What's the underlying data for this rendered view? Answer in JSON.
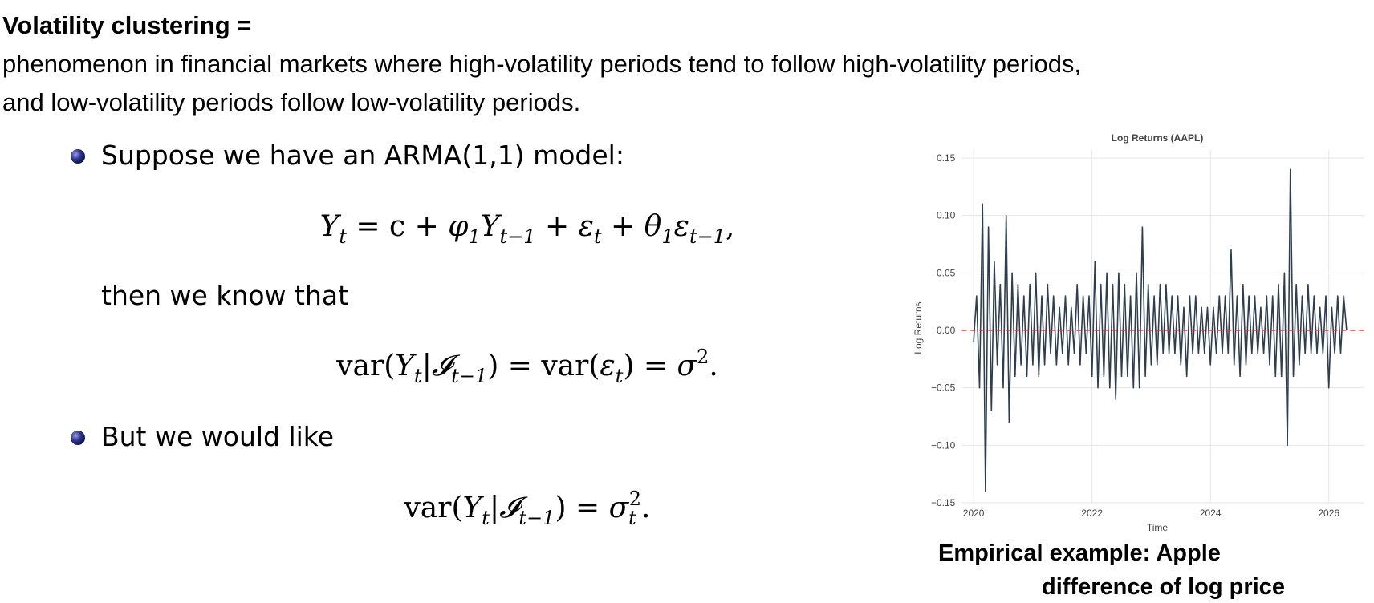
{
  "slide": {
    "title": "Volatility clustering =",
    "definition": [
      "phenomenon in financial markets where high-volatility periods tend to follow high-volatility periods,",
      "and low-volatility periods follow low-volatility periods."
    ],
    "bullet1": "Suppose we have an ARMA(1,1) model:",
    "equation1": [
      {
        "base": "Y",
        "sub": "t"
      },
      " = c + ",
      {
        "base": "φ",
        "sub": "1"
      },
      {
        "base": "Y",
        "sub": "t−1"
      },
      " + ",
      {
        "base": "ε",
        "sub": "t"
      },
      " + ",
      {
        "base": "θ",
        "sub": "1"
      },
      {
        "base": "ε",
        "sub": "t−1"
      },
      ","
    ],
    "then_text": "then we know that",
    "equation2": [
      "var(",
      {
        "base": "Y",
        "sub": "t"
      },
      "|",
      {
        "base": "𝓘",
        "sub": "t−1"
      },
      ") = var(",
      {
        "base": "ε",
        "sub": "t"
      },
      ") = ",
      {
        "base": "σ",
        "sup": "2"
      },
      "."
    ],
    "bullet2": "But we would like",
    "equation3": [
      "var(",
      {
        "base": "Y",
        "sub": "t"
      },
      "|",
      {
        "base": "𝓘",
        "sub": "t−1"
      },
      ") = ",
      {
        "base": "σ",
        "sub": "t",
        "sup": "2"
      },
      "."
    ],
    "caption": [
      "Empirical example: Apple",
      "difference of log price"
    ]
  },
  "chart_data": {
    "type": "line",
    "title": "Log Returns (AAPL)",
    "x_label": "Time",
    "y_label": "Log Returns",
    "color": "#2f3e4e",
    "grid": true,
    "reference_line": {
      "value": 0,
      "color": "#e23b3b"
    },
    "xlim": [
      2019.8,
      2026.6
    ],
    "xticks": [
      2020,
      2022,
      2024,
      2026
    ],
    "ylim": [
      -0.15,
      0.15
    ],
    "yticks": [
      {
        "value": -0.15,
        "label": "−0.15"
      },
      {
        "value": -0.1,
        "label": "−0.10"
      },
      {
        "value": -0.05,
        "label": "−0.05"
      },
      {
        "value": 0,
        "label": "0.00"
      },
      0.05,
      {
        "value": 0.1,
        "label": "0.10"
      },
      0.15
    ],
    "x": [
      2020.0,
      2020.05,
      2020.1,
      2020.15,
      2020.2,
      2020.25,
      2020.3,
      2020.35,
      2020.4,
      2020.45,
      2020.5,
      2020.55,
      2020.6,
      2020.65,
      2020.7,
      2020.75,
      2020.8,
      2020.85,
      2020.9,
      2020.95,
      2021.0,
      2021.05,
      2021.1,
      2021.15,
      2021.2,
      2021.25,
      2021.3,
      2021.35,
      2021.4,
      2021.45,
      2021.5,
      2021.55,
      2021.6,
      2021.65,
      2021.7,
      2021.75,
      2021.8,
      2021.85,
      2021.9,
      2021.95,
      2022.0,
      2022.05,
      2022.1,
      2022.15,
      2022.2,
      2022.25,
      2022.3,
      2022.35,
      2022.4,
      2022.45,
      2022.5,
      2022.55,
      2022.6,
      2022.65,
      2022.7,
      2022.75,
      2022.8,
      2022.85,
      2022.9,
      2022.95,
      2023.0,
      2023.05,
      2023.1,
      2023.15,
      2023.2,
      2023.25,
      2023.3,
      2023.35,
      2023.4,
      2023.45,
      2023.5,
      2023.55,
      2023.6,
      2023.65,
      2023.7,
      2023.75,
      2023.8,
      2023.85,
      2023.9,
      2023.95,
      2024.0,
      2024.05,
      2024.1,
      2024.15,
      2024.2,
      2024.25,
      2024.3,
      2024.35,
      2024.4,
      2024.45,
      2024.5,
      2024.55,
      2024.6,
      2024.65,
      2024.7,
      2024.75,
      2024.8,
      2024.85,
      2024.9,
      2024.95,
      2025.0,
      2025.05,
      2025.1,
      2025.15,
      2025.2,
      2025.25,
      2025.3,
      2025.35,
      2025.4,
      2025.45,
      2025.5,
      2025.55,
      2025.6,
      2025.65,
      2025.7,
      2025.75,
      2025.8,
      2025.85,
      2025.9,
      2025.95,
      2026.0,
      2026.05,
      2026.1,
      2026.15,
      2026.2,
      2026.25,
      2026.3
    ],
    "values": [
      -0.01,
      0.03,
      -0.05,
      0.11,
      -0.14,
      0.09,
      -0.07,
      0.06,
      -0.03,
      0.04,
      -0.05,
      0.1,
      -0.08,
      0.05,
      -0.04,
      0.04,
      -0.03,
      0.03,
      -0.04,
      0.04,
      -0.03,
      0.05,
      -0.04,
      0.03,
      -0.03,
      0.04,
      -0.02,
      0.03,
      -0.03,
      0.02,
      -0.02,
      0.03,
      -0.03,
      0.02,
      -0.02,
      0.04,
      -0.03,
      0.03,
      -0.02,
      0.03,
      -0.04,
      0.06,
      -0.05,
      0.04,
      -0.04,
      0.05,
      -0.05,
      0.04,
      -0.06,
      0.05,
      -0.04,
      0.04,
      -0.04,
      0.03,
      -0.05,
      0.05,
      -0.05,
      0.09,
      -0.04,
      0.04,
      -0.03,
      0.03,
      -0.03,
      0.04,
      -0.02,
      0.04,
      -0.02,
      0.03,
      -0.02,
      0.03,
      -0.03,
      0.02,
      -0.04,
      0.03,
      -0.02,
      0.03,
      -0.02,
      0.02,
      -0.02,
      0.02,
      -0.03,
      0.02,
      -0.02,
      0.03,
      -0.02,
      0.03,
      -0.02,
      0.07,
      -0.03,
      0.03,
      -0.04,
      0.04,
      -0.03,
      0.03,
      -0.02,
      0.03,
      -0.02,
      0.02,
      -0.02,
      0.03,
      -0.03,
      0.03,
      -0.04,
      0.04,
      -0.04,
      0.05,
      -0.1,
      0.14,
      -0.04,
      0.04,
      -0.03,
      0.03,
      -0.02,
      0.04,
      -0.02,
      0.03,
      -0.02,
      0.02,
      -0.02,
      0.03,
      -0.05,
      0.02,
      -0.02,
      0.03,
      -0.02,
      0.03,
      0.0
    ]
  }
}
